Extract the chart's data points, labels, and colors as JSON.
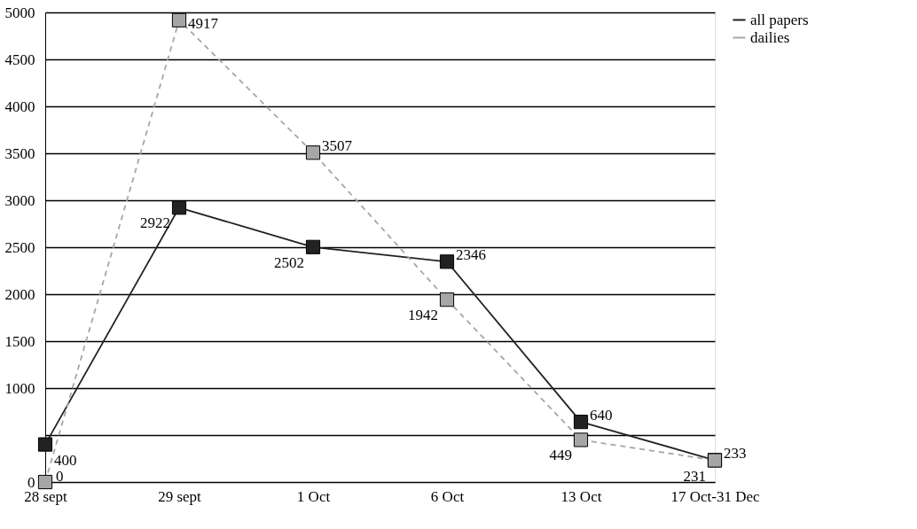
{
  "chart_data": {
    "type": "line",
    "categories": [
      "28 sept",
      "29 sept",
      "1 Oct",
      "6  Oct",
      "13 Oct",
      "17 Oct-31 Dec"
    ],
    "series": [
      {
        "name": "all papers",
        "color": "#222222",
        "values": [
          400,
          2922,
          2502,
          2346,
          640,
          233
        ],
        "line_style": "solid"
      },
      {
        "name": "dailies",
        "color": "#a6a6a6",
        "values": [
          0,
          4917,
          3507,
          1942,
          449,
          231
        ],
        "line_style": "dashed"
      }
    ],
    "ylim": [
      0,
      5000
    ],
    "yticks": [
      0,
      {
        "value": 500,
        "label": null
      },
      1000,
      1500,
      2000,
      2500,
      3000,
      3500,
      4000,
      4500,
      5000
    ],
    "grid": "y",
    "legend": "right",
    "marker": "square",
    "data_labels": true
  }
}
